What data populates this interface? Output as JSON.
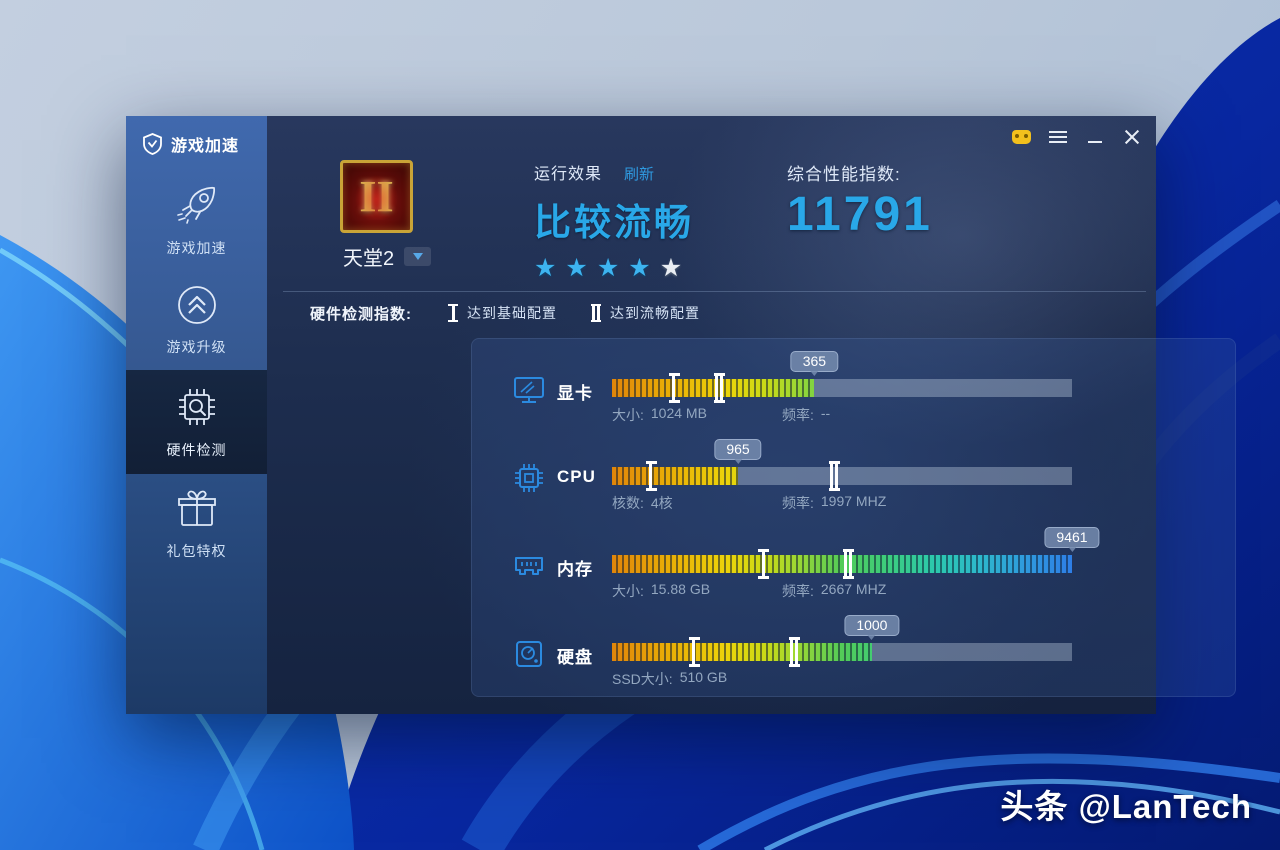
{
  "sidebar": {
    "logo": "游戏加速",
    "items": [
      {
        "label": "游戏加速"
      },
      {
        "label": "游戏升级"
      },
      {
        "label": "硬件检测"
      },
      {
        "label": "礼包特权"
      }
    ]
  },
  "header": {
    "game_name": "天堂2",
    "game_logo_numeral": "II",
    "run_effect_label": "运行效果",
    "refresh_label": "刷新",
    "effect_value": "比较流畅",
    "stars": {
      "filled": 4,
      "total": 5
    },
    "score_label": "综合性能指数:",
    "score_value": "11791"
  },
  "legend": {
    "title": "硬件检测指数:",
    "base_label": "达到基础配置",
    "smooth_label": "达到流畅配置"
  },
  "hardware": {
    "rows": [
      {
        "label": "显卡",
        "score": "365",
        "fill_pct": 44,
        "base_pct": 13.4,
        "smooth_pct": 23.3,
        "details": [
          {
            "name": "大小:",
            "value": "1024 MB"
          },
          {
            "name": "频率:",
            "value": "--"
          }
        ]
      },
      {
        "label": "CPU",
        "score": "965",
        "fill_pct": 27.4,
        "base_pct": 8.4,
        "smooth_pct": 48.2,
        "details": [
          {
            "name": "核数:",
            "value": "4核"
          },
          {
            "name": "频率:",
            "value": "1997 MHZ"
          }
        ]
      },
      {
        "label": "内存",
        "score": "9461",
        "fill_pct": 100,
        "base_pct": 32.9,
        "smooth_pct": 51.3,
        "details": [
          {
            "name": "大小:",
            "value": "15.88 GB"
          },
          {
            "name": "频率:",
            "value": "2667 MHZ"
          }
        ]
      },
      {
        "label": "硬盘",
        "score": "1000",
        "fill_pct": 56.5,
        "base_pct": 17.8,
        "smooth_pct": 39.6,
        "details": [
          {
            "name": "SSD大小:",
            "value": "510 GB"
          }
        ]
      }
    ]
  },
  "watermark": "头条 @LanTech",
  "colors": {
    "accent_cyan": "#29a8e8",
    "refresh_blue": "#2f9ae0",
    "star_blue": "#3db4f0",
    "star_empty": "#e9edf3",
    "sidebar_blue": "#3a63a8",
    "selected_navy": "#142339",
    "badge_bg": "#768caf",
    "bar_gradient": [
      "#e0850a",
      "#ecd40a",
      "#9ed832",
      "#52cb58",
      "#2cc9ad",
      "#2e7ee6"
    ],
    "icon_blue": "#2b8ae0",
    "gamepad_yellow": "#f2c01d"
  }
}
